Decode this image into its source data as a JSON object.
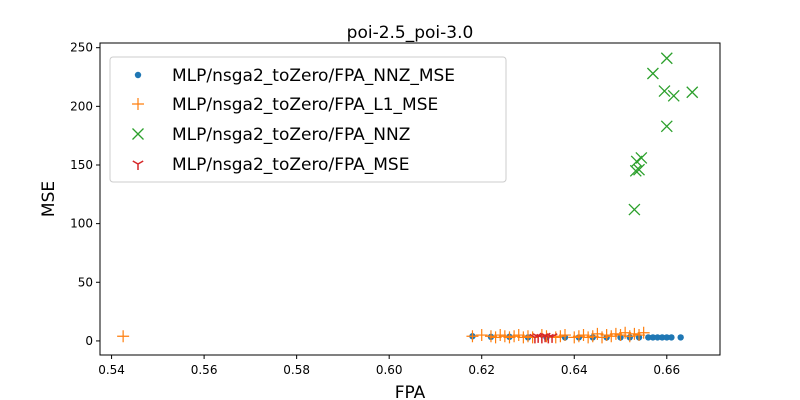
{
  "chart_data": {
    "type": "scatter",
    "title": "poi-2.5_poi-3.0",
    "xlabel": "FPA",
    "ylabel": "MSE",
    "xlim": [
      0.5375,
      0.6715
    ],
    "ylim": [
      -12,
      254
    ],
    "xticks": [
      0.54,
      0.56,
      0.58,
      0.6,
      0.62,
      0.64,
      0.66
    ],
    "xtick_labels": [
      "0.54",
      "0.56",
      "0.58",
      "0.60",
      "0.62",
      "0.64",
      "0.66"
    ],
    "yticks": [
      0,
      50,
      100,
      150,
      200,
      250
    ],
    "ytick_labels": [
      "0",
      "50",
      "100",
      "150",
      "200",
      "250"
    ],
    "grid": false,
    "legend_position": "top-left",
    "series": [
      {
        "name": "MLP/nsga2_toZero/FPA_NNZ_MSE",
        "marker": "dot",
        "color": "#1f77b4",
        "x": [
          0.618,
          0.622,
          0.626,
          0.63,
          0.634,
          0.638,
          0.641,
          0.644,
          0.647,
          0.65,
          0.652,
          0.654,
          0.656,
          0.657,
          0.658,
          0.659,
          0.66,
          0.661,
          0.663
        ],
        "y": [
          4,
          3.5,
          3.5,
          3,
          3,
          3,
          3,
          3,
          3,
          3,
          3,
          3,
          3,
          3,
          3,
          3,
          3,
          3,
          3
        ]
      },
      {
        "name": "MLP/nsga2_toZero/FPA_L1_MSE",
        "marker": "plus",
        "color": "#ff7f0e",
        "x": [
          0.5425,
          0.618,
          0.62,
          0.622,
          0.623,
          0.624,
          0.625,
          0.626,
          0.627,
          0.628,
          0.629,
          0.63,
          0.631,
          0.633,
          0.634,
          0.636,
          0.637,
          0.638,
          0.64,
          0.641,
          0.642,
          0.643,
          0.644,
          0.645,
          0.646,
          0.647,
          0.648,
          0.649,
          0.65,
          0.651,
          0.652,
          0.653,
          0.654,
          0.655
        ],
        "y": [
          4,
          4,
          5,
          4,
          3,
          5,
          4,
          3,
          4,
          5,
          3,
          4,
          3,
          5,
          4,
          3,
          4,
          5,
          3,
          4,
          5,
          3,
          4,
          6,
          3,
          5,
          4,
          6,
          5,
          7,
          4,
          6,
          5,
          7
        ]
      },
      {
        "name": "MLP/nsga2_toZero/FPA_NNZ",
        "marker": "x",
        "color": "#2ca02c",
        "x": [
          0.653,
          0.6533,
          0.654,
          0.6545,
          0.6535,
          0.66,
          0.657,
          0.6595,
          0.6615,
          0.6655,
          0.66
        ],
        "y": [
          112,
          145,
          146,
          156,
          153,
          183,
          228,
          213,
          209,
          212,
          241
        ]
      },
      {
        "name": "MLP/nsga2_toZero/FPA_MSE",
        "marker": "tri",
        "color": "#d62728",
        "x": [
          0.6315,
          0.6322,
          0.633,
          0.6337,
          0.6344,
          0.6352
        ],
        "y": [
          3,
          3.5,
          3,
          4,
          3,
          3.5
        ]
      }
    ]
  }
}
